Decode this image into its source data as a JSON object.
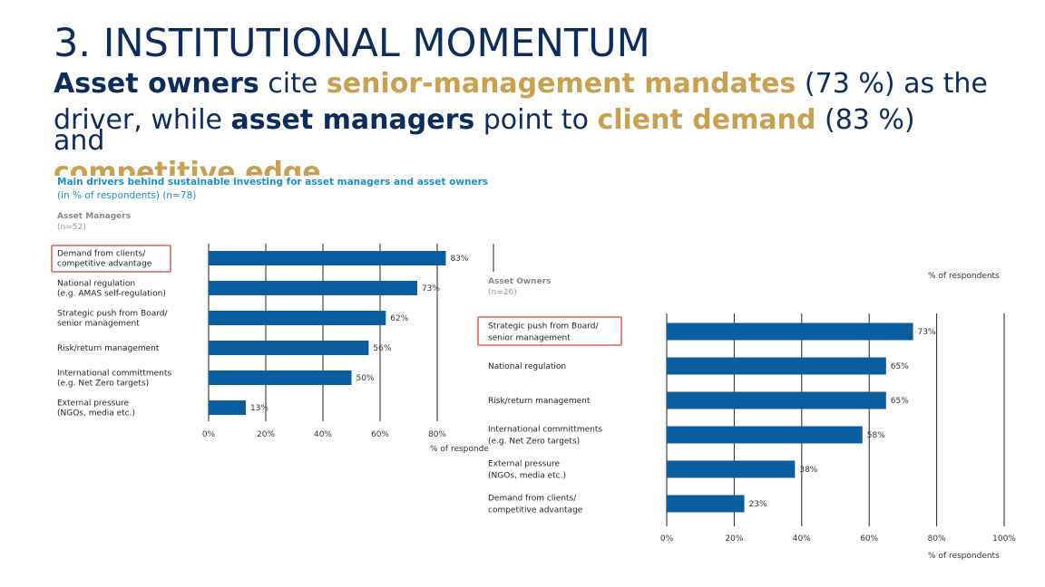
{
  "slide": {
    "title": "3. INSTITUTIONAL MOMENTUM",
    "subtitle": {
      "line1": [
        {
          "t": "Asset owners",
          "s": "bold"
        },
        {
          "t": " cite ",
          "s": ""
        },
        {
          "t": "senior-management mandates",
          "s": "gold"
        },
        {
          "t": " (73 %) as the",
          "s": ""
        }
      ],
      "line2": [
        {
          "t": "driver, while ",
          "s": ""
        },
        {
          "t": "asset managers",
          "s": "bold"
        },
        {
          "t": " point to ",
          "s": ""
        },
        {
          "t": "client demand",
          "s": "gold"
        },
        {
          "t": " (83 %)",
          "s": ""
        }
      ],
      "overflow_and": "and",
      "overflow_tail": "competitive edge"
    }
  },
  "figure": {
    "title": "Main drivers behind sustainable investing for asset managers and asset owners",
    "subtitle": "(in % of respondents) (n=78)"
  },
  "colors": {
    "bar": "#0a5d9e",
    "highlight": "#d9413a",
    "title": "#0d2b5c",
    "accent": "#c8a04f",
    "figure_title": "#1b8fc9"
  },
  "chart_data": [
    {
      "type": "bar",
      "orientation": "horizontal",
      "group": "Asset Managers",
      "group_n": "(n=52)",
      "categories": [
        [
          "Demand from clients/",
          "competitive advantage"
        ],
        [
          "National regulation",
          "(e.g. AMAS self-regulation)"
        ],
        [
          "Strategic push from Board/",
          "senior management"
        ],
        [
          "Risk/return management"
        ],
        [
          "International committments",
          "(e.g. Net Zero targets)"
        ],
        [
          "External pressure",
          "(NGOs, media etc.)"
        ]
      ],
      "values": [
        83,
        73,
        62,
        56,
        50,
        13
      ],
      "value_labels": [
        "83%",
        "73%",
        "62%",
        "56%",
        "50%",
        "13%"
      ],
      "highlight_index": 0,
      "xticks": [
        "0%",
        "20%",
        "40%",
        "60%",
        "80%"
      ],
      "xlim": [
        0,
        100
      ],
      "xlabel": "% of responde",
      "grid": true
    },
    {
      "type": "bar",
      "orientation": "horizontal",
      "group": "Asset Owners",
      "group_n": "(n=26)",
      "categories": [
        [
          "Strategic push from Board/",
          "senior management"
        ],
        [
          "National regulation"
        ],
        [
          "Risk/return management"
        ],
        [
          "International committments",
          "(e.g. Net Zero targets)"
        ],
        [
          "External pressure",
          "(NGOs, media etc.)"
        ],
        [
          "Demand from clients/",
          "competitive advantage"
        ]
      ],
      "values": [
        73,
        65,
        65,
        58,
        38,
        23
      ],
      "value_labels": [
        "73%",
        "65%",
        "65%",
        "58%",
        "38%",
        "23%"
      ],
      "highlight_index": 0,
      "xticks": [
        "0%",
        "20%",
        "40%",
        "60%",
        "80%",
        "100%"
      ],
      "xlim": [
        0,
        100
      ],
      "xlabel": "% of respondents",
      "top_label": "% of respondents",
      "grid": true
    }
  ]
}
